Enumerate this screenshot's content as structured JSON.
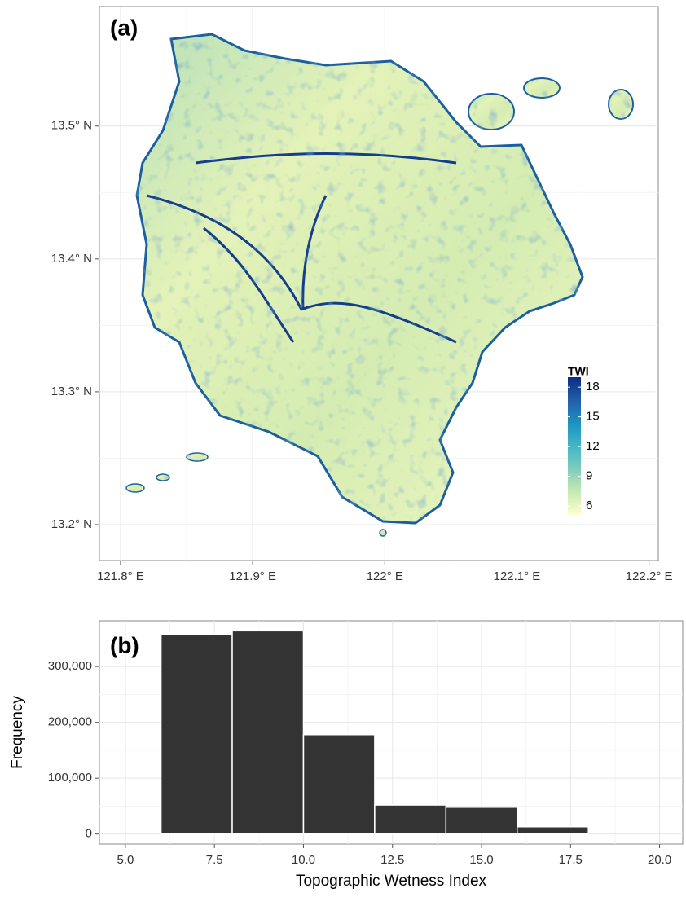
{
  "chart_data": [
    {
      "type": "map",
      "panel_label": "(a)",
      "xlim": [
        121.784,
        122.207
      ],
      "xticks": [
        {
          "value": 121.8,
          "label": "121.8° E"
        },
        {
          "value": 121.9,
          "label": "121.9° E"
        },
        {
          "value": 122.0,
          "label": "122° E"
        },
        {
          "value": 122.1,
          "label": "122.1° E"
        },
        {
          "value": 122.2,
          "label": "122.2° E"
        }
      ],
      "ylim": [
        13.173,
        13.59
      ],
      "yticks": [
        {
          "value": 13.2,
          "label": "13.2° N"
        },
        {
          "value": 13.3,
          "label": "13.3° N"
        },
        {
          "value": 13.4,
          "label": "13.4° N"
        },
        {
          "value": 13.5,
          "label": "13.5° N"
        }
      ],
      "grid": true,
      "legend": {
        "title": "TWI",
        "lim": [
          5.1,
          19
        ],
        "ticks": [
          6,
          9,
          12,
          15,
          18
        ],
        "colors": [
          "#ffffcc",
          "#c7e9b4",
          "#7fcdbb",
          "#41b6c4",
          "#1d91c0",
          "#225ea8",
          "#0c2c84"
        ]
      }
    },
    {
      "type": "histogram",
      "panel_label": "(b)",
      "bins": [
        6,
        8,
        10,
        12,
        14,
        16,
        18
      ],
      "values": [
        358000,
        364000,
        178000,
        52000,
        48000,
        13000
      ],
      "color": "#333333",
      "xlim": [
        4.27,
        20.65
      ],
      "xticks": [
        {
          "value": 5,
          "label": "5.0"
        },
        7.5,
        {
          "value": 10,
          "label": "10.0"
        },
        12.5,
        {
          "value": 15,
          "label": "15.0"
        },
        17.5,
        {
          "value": 20,
          "label": "20.0"
        }
      ],
      "ylim": [
        -18000,
        382000
      ],
      "yticks": [
        0,
        {
          "value": 100000,
          "label": "100,000"
        },
        {
          "value": 200000,
          "label": "200,000"
        },
        {
          "value": 300000,
          "label": "300,000"
        }
      ],
      "xlabel": "Topographic Wetness Index",
      "ylabel": "Frequency",
      "grid": true
    }
  ]
}
